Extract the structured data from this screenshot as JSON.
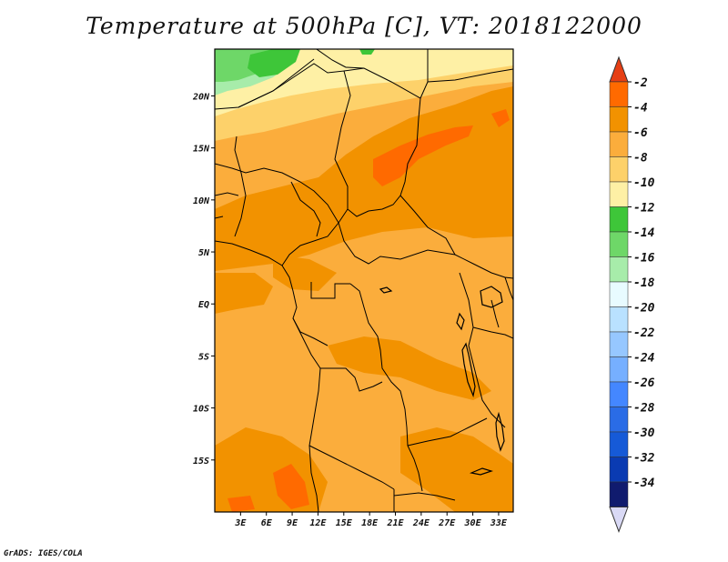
{
  "title": "Temperature at 500hPa [C], VT: 2018122000",
  "credit": "GrADS: IGES/COLA",
  "map": {
    "lon_range": [
      0,
      34.7
    ],
    "lat_range": [
      -20,
      24.5
    ],
    "lon_ticks": [
      "3E",
      "6E",
      "9E",
      "12E",
      "15E",
      "18E",
      "21E",
      "24E",
      "27E",
      "30E",
      "33E"
    ],
    "lon_tick_values": [
      3,
      6,
      9,
      12,
      15,
      18,
      21,
      24,
      27,
      30,
      33
    ],
    "lat_ticks": [
      "20N",
      "15N",
      "10N",
      "5N",
      "EQ",
      "5S",
      "10S",
      "15S"
    ],
    "lat_tick_values": [
      20,
      15,
      10,
      5,
      0,
      -5,
      -10,
      -15
    ],
    "background_color": "#fbad3c"
  },
  "colorbar": {
    "labels": [
      "-2",
      "-4",
      "-6",
      "-8",
      "-10",
      "-12",
      "-14",
      "-16",
      "-18",
      "-20",
      "-22",
      "-24",
      "-26",
      "-28",
      "-30",
      "-32",
      "-34"
    ],
    "colors": [
      "#ff6a00",
      "#f29200",
      "#fbad3c",
      "#fdd16a",
      "#fef0a5",
      "#3ec639",
      "#6ed768",
      "#a7ecaa",
      "#e8fbff",
      "#b9e1ff",
      "#96c7ff",
      "#76afff",
      "#4487ff",
      "#2a6ce6",
      "#165ad7",
      "#0a3bb2",
      "#101b6e"
    ],
    "top_arrow_color": "#e63f14",
    "bottom_arrow_color": "#d9d9f5"
  }
}
